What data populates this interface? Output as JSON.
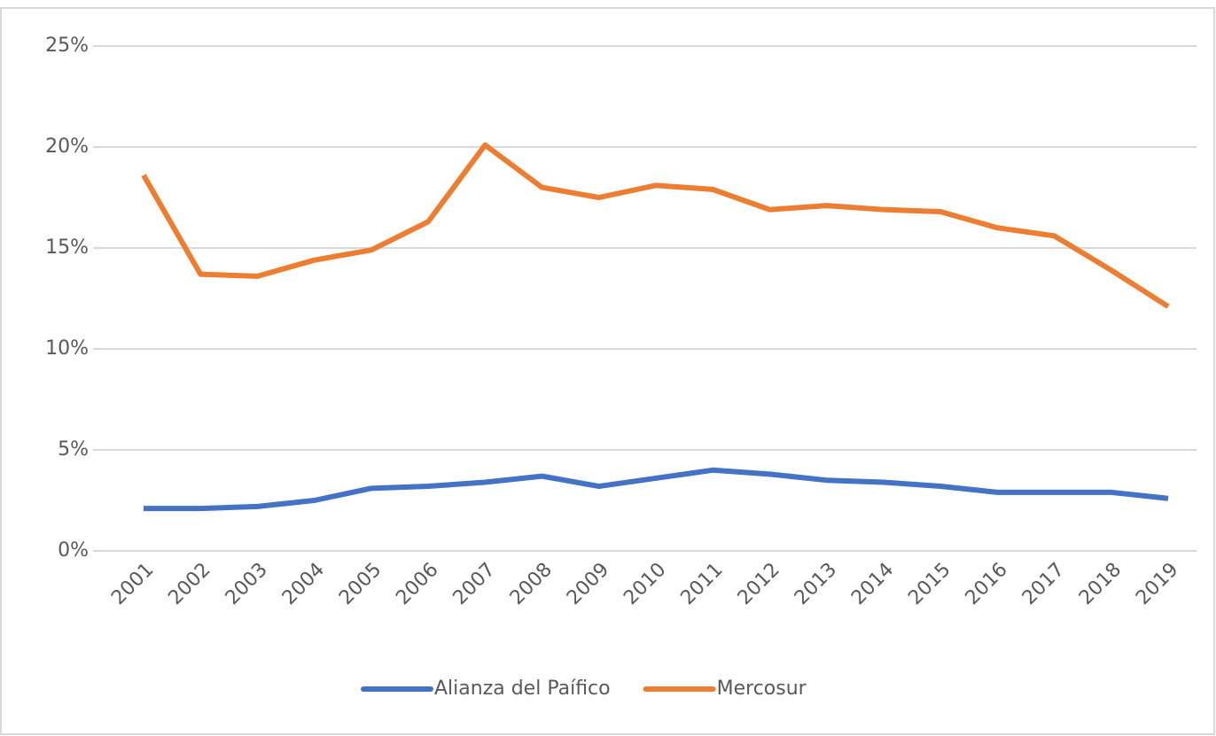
{
  "chart_data": {
    "type": "line",
    "categories": [
      "2001",
      "2002",
      "2003",
      "2004",
      "2005",
      "2006",
      "2007",
      "2008",
      "2009",
      "2010",
      "2011",
      "2012",
      "2013",
      "2014",
      "2015",
      "2016",
      "2017",
      "2018",
      "2019"
    ],
    "series": [
      {
        "name": "Alianza del Paífico",
        "color": "#4472c4",
        "values": [
          2.1,
          2.1,
          2.2,
          2.5,
          3.1,
          3.2,
          3.4,
          3.7,
          3.2,
          3.6,
          4.0,
          3.8,
          3.5,
          3.4,
          3.2,
          2.9,
          2.9,
          2.9,
          2.6
        ]
      },
      {
        "name": "Mercosur",
        "color": "#ed7d31",
        "values": [
          18.6,
          13.7,
          13.6,
          14.4,
          14.9,
          16.3,
          20.1,
          18.0,
          17.5,
          18.1,
          17.9,
          16.9,
          17.1,
          16.9,
          16.8,
          16.0,
          15.6,
          13.9,
          12.1
        ]
      }
    ],
    "ylim": [
      0,
      25
    ],
    "yticks": [
      {
        "value": 0,
        "label": "0%"
      },
      {
        "value": 5,
        "label": "5%"
      },
      {
        "value": 10,
        "label": "10%"
      },
      {
        "value": 15,
        "label": "15%"
      },
      {
        "value": 20,
        "label": "20%"
      },
      {
        "value": 25,
        "label": "25%"
      }
    ],
    "grid": true,
    "legend": "bottom"
  }
}
